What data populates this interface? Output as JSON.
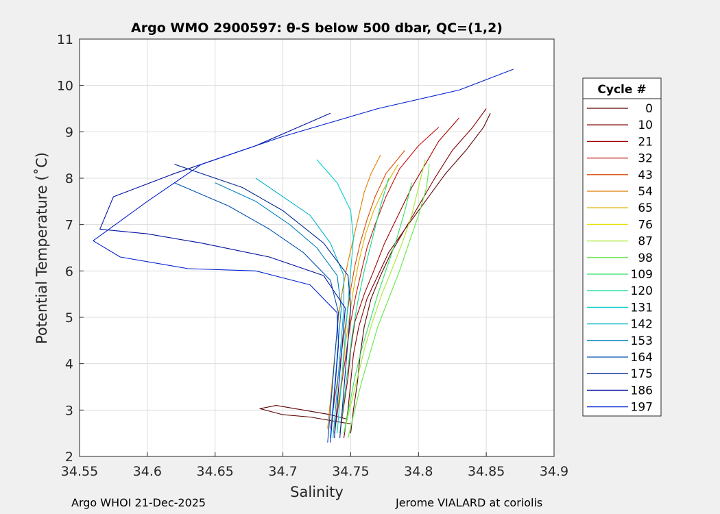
{
  "chart_data": {
    "type": "line",
    "title": "Argo WMO 2900597: θ-S below 500 dbar,  QC=(1,2)",
    "xlabel": "Salinity",
    "ylabel": "Potential Temperature (˚C)",
    "xlim": [
      34.55,
      34.9
    ],
    "ylim": [
      2,
      11
    ],
    "xticks": [
      "34.55",
      "34.6",
      "34.65",
      "34.7",
      "34.75",
      "34.8",
      "34.85",
      "34.9"
    ],
    "yticks": [
      "2",
      "3",
      "4",
      "5",
      "6",
      "7",
      "8",
      "9",
      "10",
      "11"
    ],
    "grid": true,
    "legend": {
      "title": "Cycle #",
      "placement": "right-outside",
      "entries": [
        {
          "name": "0",
          "color": "#5a0000"
        },
        {
          "name": "10",
          "color": "#800000"
        },
        {
          "name": "21",
          "color": "#a00000"
        },
        {
          "name": "32",
          "color": "#c81010"
        },
        {
          "name": "43",
          "color": "#d84a00"
        },
        {
          "name": "54",
          "color": "#e07c00"
        },
        {
          "name": "65",
          "color": "#e0b000"
        },
        {
          "name": "76",
          "color": "#e8e000"
        },
        {
          "name": "87",
          "color": "#a8e830"
        },
        {
          "name": "98",
          "color": "#60e840"
        },
        {
          "name": "109",
          "color": "#30e060"
        },
        {
          "name": "120",
          "color": "#10d890"
        },
        {
          "name": "131",
          "color": "#00d0c8"
        },
        {
          "name": "142",
          "color": "#00b0c8"
        },
        {
          "name": "153",
          "color": "#0080c0"
        },
        {
          "name": "164",
          "color": "#0050b0"
        },
        {
          "name": "175",
          "color": "#002890"
        },
        {
          "name": "186",
          "color": "#0010a0"
        },
        {
          "name": "197",
          "color": "#0020d0"
        }
      ]
    },
    "series": [
      {
        "color": "#5a0000",
        "x": [
          34.75,
          34.752,
          34.755,
          34.757,
          34.76,
          34.765,
          34.772,
          34.78,
          34.79,
          34.805,
          34.82,
          34.835,
          34.848,
          34.853
        ],
        "y": [
          2.5,
          3.0,
          3.6,
          4.2,
          4.8,
          5.4,
          5.9,
          6.4,
          6.9,
          7.5,
          8.1,
          8.6,
          9.1,
          9.4
        ]
      },
      {
        "color": "#800000",
        "x": [
          34.745,
          34.748,
          34.75,
          34.752,
          34.756,
          34.762,
          34.77,
          34.778,
          34.79,
          34.8,
          34.812,
          34.825,
          34.84,
          34.85
        ],
        "y": [
          2.4,
          3.0,
          3.6,
          4.2,
          4.8,
          5.4,
          5.9,
          6.4,
          6.9,
          7.4,
          8.0,
          8.6,
          9.1,
          9.5
        ]
      },
      {
        "color": "#a00000",
        "x": [
          34.742,
          34.745,
          34.748,
          34.75,
          34.753,
          34.76,
          34.767,
          34.775,
          34.785,
          34.795,
          34.805,
          34.815,
          34.83
        ],
        "y": [
          2.5,
          3.1,
          3.7,
          4.3,
          4.9,
          5.5,
          6.0,
          6.6,
          7.2,
          7.8,
          8.3,
          8.8,
          9.3
        ]
      },
      {
        "color": "#5a0000",
        "x": [
          34.75,
          34.72,
          34.7,
          34.683,
          34.695,
          34.715,
          34.735,
          34.748
        ],
        "y": [
          2.7,
          2.85,
          2.9,
          3.03,
          3.1,
          3.0,
          2.9,
          2.8
        ]
      },
      {
        "color": "#c81010",
        "x": [
          34.738,
          34.741,
          34.744,
          34.747,
          34.75,
          34.754,
          34.758,
          34.762,
          34.768,
          34.776,
          34.786,
          34.8,
          34.815
        ],
        "y": [
          2.5,
          3.1,
          3.7,
          4.3,
          4.9,
          5.5,
          6.0,
          6.5,
          7.0,
          7.6,
          8.2,
          8.7,
          9.1
        ]
      },
      {
        "color": "#d84a00",
        "x": [
          34.735,
          34.738,
          34.741,
          34.744,
          34.747,
          34.75,
          34.753,
          34.757,
          34.762,
          34.768,
          34.776,
          34.79
        ],
        "y": [
          2.6,
          3.2,
          3.8,
          4.4,
          5.0,
          5.6,
          6.1,
          6.6,
          7.1,
          7.6,
          8.1,
          8.6
        ]
      },
      {
        "color": "#e07c00",
        "x": [
          34.733,
          34.735,
          34.737,
          34.739,
          34.741,
          34.744,
          34.748,
          34.752,
          34.756,
          34.76,
          34.765,
          34.772
        ],
        "y": [
          2.6,
          3.2,
          3.8,
          4.4,
          5.0,
          5.6,
          6.2,
          6.7,
          7.2,
          7.7,
          8.1,
          8.5
        ]
      },
      {
        "color": "#e0b000",
        "x": [
          34.738,
          34.741,
          34.744,
          34.746,
          34.749,
          34.752,
          34.756,
          34.761,
          34.767,
          34.775,
          34.785
        ],
        "y": [
          2.6,
          3.2,
          3.8,
          4.4,
          5.0,
          5.6,
          6.2,
          6.8,
          7.3,
          7.8,
          8.3
        ]
      },
      {
        "color": "#a8e830",
        "x": [
          34.745,
          34.75,
          34.755,
          34.76,
          34.766,
          34.773,
          34.78,
          34.788,
          34.795,
          34.8,
          34.805
        ],
        "y": [
          2.5,
          3.1,
          3.7,
          4.3,
          4.9,
          5.5,
          6.0,
          6.6,
          7.2,
          7.8,
          8.4
        ]
      },
      {
        "color": "#60e840",
        "x": [
          34.748,
          34.753,
          34.758,
          34.764,
          34.77,
          34.778,
          34.786,
          34.793,
          34.8,
          34.806,
          34.808
        ],
        "y": [
          2.4,
          3.0,
          3.6,
          4.2,
          4.8,
          5.4,
          6.0,
          6.6,
          7.2,
          7.8,
          8.3
        ]
      },
      {
        "color": "#30e060",
        "x": [
          34.745,
          34.749,
          34.753,
          34.758,
          34.764,
          34.77,
          34.777,
          34.784,
          34.79,
          34.795
        ],
        "y": [
          2.5,
          3.1,
          3.7,
          4.3,
          4.9,
          5.5,
          6.1,
          6.7,
          7.3,
          7.9
        ]
      },
      {
        "color": "#10d890",
        "x": [
          34.742,
          34.745,
          34.748,
          34.751,
          34.755,
          34.76,
          34.766,
          34.772,
          34.778
        ],
        "y": [
          2.5,
          3.2,
          3.9,
          4.6,
          5.3,
          6.0,
          6.7,
          7.4,
          8.0
        ]
      },
      {
        "color": "#00d0c8",
        "x": [
          34.74,
          34.742,
          34.744,
          34.746,
          34.748,
          34.75,
          34.752,
          34.75,
          34.74,
          34.725
        ],
        "y": [
          2.5,
          3.2,
          3.9,
          4.6,
          5.3,
          6.0,
          6.7,
          7.3,
          7.9,
          8.4
        ]
      },
      {
        "color": "#00b0c8",
        "x": [
          34.737,
          34.739,
          34.741,
          34.743,
          34.745,
          34.745,
          34.735,
          34.72,
          34.7,
          34.68
        ],
        "y": [
          2.4,
          3.1,
          3.8,
          4.5,
          5.2,
          5.9,
          6.6,
          7.2,
          7.6,
          8.0
        ]
      },
      {
        "color": "#0080c0",
        "x": [
          34.735,
          34.737,
          34.739,
          34.741,
          34.743,
          34.74,
          34.725,
          34.705,
          34.68,
          34.65
        ],
        "y": [
          2.4,
          3.1,
          3.8,
          4.5,
          5.2,
          5.9,
          6.5,
          7.0,
          7.5,
          7.9
        ]
      },
      {
        "color": "#0050b0",
        "x": [
          34.733,
          34.735,
          34.737,
          34.739,
          34.741,
          34.735,
          34.715,
          34.69,
          34.66,
          34.62
        ],
        "y": [
          2.3,
          3.0,
          3.7,
          4.4,
          5.1,
          5.8,
          6.4,
          6.9,
          7.4,
          7.9
        ]
      },
      {
        "color": "#002890",
        "x": [
          34.742,
          34.744,
          34.746,
          34.748,
          34.75,
          34.748,
          34.73,
          34.7,
          34.67,
          34.62
        ],
        "y": [
          2.4,
          3.1,
          3.8,
          4.5,
          5.2,
          5.9,
          6.6,
          7.3,
          7.8,
          8.3
        ]
      },
      {
        "color": "#0010a0",
        "x": [
          34.738,
          34.74,
          34.742,
          34.744,
          34.746,
          34.73,
          34.69,
          34.64,
          34.6,
          34.565,
          34.575,
          34.62,
          34.68,
          34.735
        ],
        "y": [
          2.4,
          3.1,
          3.8,
          4.5,
          5.2,
          5.9,
          6.3,
          6.6,
          6.8,
          6.9,
          7.6,
          8.1,
          8.7,
          9.4
        ]
      },
      {
        "color": "#0020d0",
        "x": [
          34.735,
          34.737,
          34.739,
          34.741,
          34.74,
          34.72,
          34.68,
          34.63,
          34.58,
          34.56,
          34.6,
          34.64,
          34.7,
          34.77,
          34.83,
          34.87
        ],
        "y": [
          2.3,
          3.0,
          3.7,
          4.4,
          5.1,
          5.7,
          6.0,
          6.05,
          6.3,
          6.65,
          7.5,
          8.3,
          8.9,
          9.5,
          9.9,
          10.35
        ]
      }
    ]
  },
  "footer": {
    "left": "Argo WHOI 21-Dec-2025",
    "right": "Jerome VIALARD at coriolis"
  }
}
